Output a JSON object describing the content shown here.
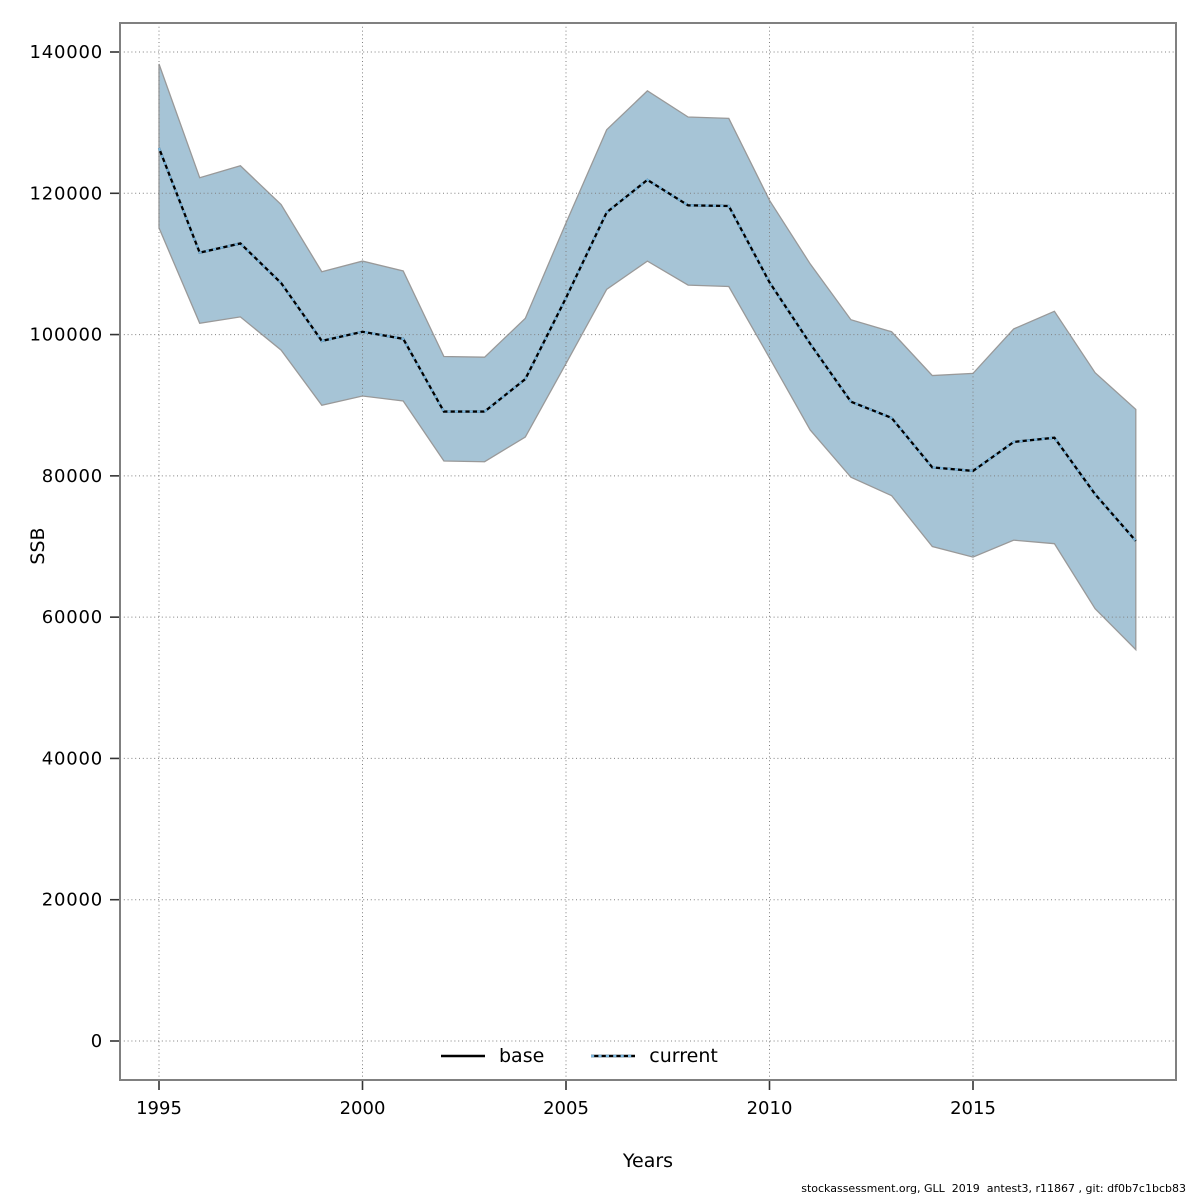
{
  "chart_data": {
    "type": "area",
    "title": "",
    "xlabel": "Years",
    "ylabel": "SSB",
    "grid": "dotted",
    "x_ticks": [
      1995,
      2000,
      2005,
      2010,
      2015
    ],
    "y_ticks": [
      0,
      20000,
      40000,
      60000,
      80000,
      100000,
      120000,
      140000
    ],
    "xlim": [
      1994,
      2020
    ],
    "ylim": [
      -5500,
      144100
    ],
    "legend_position": "bottom-center-inside",
    "band_color": "#a6c4d6",
    "band_edge_color": "#999999",
    "grid_color": "#808080",
    "frame_color": "#808080",
    "x": [
      1995,
      1996,
      1997,
      1998,
      1999,
      2000,
      2001,
      2002,
      2003,
      2004,
      2005,
      2006,
      2007,
      2008,
      2009,
      2010,
      2011,
      2012,
      2013,
      2014,
      2015,
      2016,
      2017,
      2018,
      2019
    ],
    "series": [
      {
        "name": "base",
        "style": "solid",
        "color": "#000000",
        "values": [
          126400,
          111600,
          112900,
          107300,
          99100,
          100400,
          99400,
          89100,
          89100,
          93700,
          105200,
          117300,
          121900,
          118300,
          118200,
          107400,
          98700,
          90500,
          88200,
          81200,
          80700,
          84800,
          85400,
          77400,
          70800
        ]
      },
      {
        "name": "current",
        "style": "dotted",
        "color": "#79b5dc",
        "values": [
          126400,
          111600,
          112900,
          107300,
          99100,
          100400,
          99400,
          89100,
          89100,
          93700,
          105200,
          117300,
          121900,
          118300,
          118200,
          107400,
          98700,
          90500,
          88200,
          81200,
          80700,
          84800,
          85400,
          77400,
          70800
        ],
        "band_lower": [
          115100,
          101600,
          102500,
          97800,
          90000,
          91300,
          90600,
          82100,
          82000,
          85500,
          95900,
          106400,
          110400,
          107000,
          106800,
          96700,
          86500,
          79800,
          77200,
          70000,
          68500,
          70900,
          70400,
          61200,
          55400
        ],
        "band_upper": [
          138300,
          122200,
          123900,
          118400,
          108900,
          110400,
          109000,
          96900,
          96800,
          102300,
          115800,
          129000,
          134500,
          130800,
          130600,
          119000,
          110000,
          102100,
          100400,
          94200,
          94500,
          100800,
          103300,
          94600,
          89400
        ]
      }
    ]
  },
  "legend": {
    "base_label": "base",
    "current_label": "current"
  },
  "footer": {
    "attribution": "stockassessment.org, GLL  2019  antest3, r11867 , git: df0b7c1bcb83"
  }
}
